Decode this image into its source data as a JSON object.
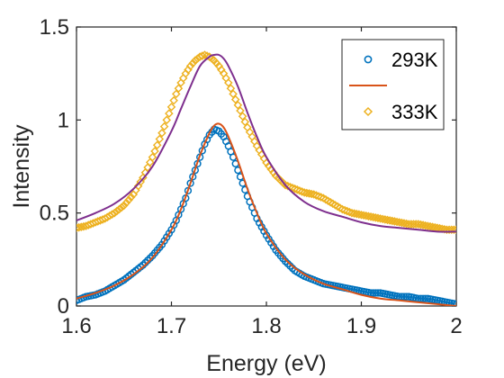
{
  "chart_data": {
    "type": "scatter",
    "xlabel": "Energy (eV)",
    "ylabel": "Intensity",
    "xlim": [
      1.6,
      2.0
    ],
    "ylim": [
      0,
      1.5
    ],
    "xticks": [
      "1.6",
      "1.7",
      "1.8",
      "1.9",
      "2"
    ],
    "yticks": [
      "0",
      "0.5",
      "1",
      "1.5"
    ],
    "grid": false,
    "legend_position": "top-right",
    "legend": [
      "293K",
      "",
      "333K"
    ],
    "colors": {
      "s293_markers": "#0072BD",
      "s293_fit": "#D95319",
      "s333_markers": "#EDB120",
      "s333_fit": "#7E2F8E",
      "axis": "#262626"
    },
    "series": [
      {
        "name": "293K",
        "kind": "markers",
        "marker": "circle",
        "x": [
          1.6,
          1.61,
          1.62,
          1.63,
          1.64,
          1.65,
          1.66,
          1.67,
          1.68,
          1.69,
          1.7,
          1.705,
          1.71,
          1.715,
          1.72,
          1.725,
          1.73,
          1.735,
          1.74,
          1.745,
          1.75,
          1.755,
          1.76,
          1.765,
          1.77,
          1.775,
          1.78,
          1.79,
          1.8,
          1.81,
          1.82,
          1.83,
          1.84,
          1.85,
          1.86,
          1.87,
          1.88,
          1.89,
          1.9,
          1.91,
          1.92,
          1.93,
          1.94,
          1.95,
          1.96,
          1.97,
          1.98,
          1.99,
          2.0
        ],
        "y": [
          0.03,
          0.05,
          0.06,
          0.08,
          0.11,
          0.14,
          0.18,
          0.22,
          0.27,
          0.33,
          0.41,
          0.46,
          0.52,
          0.58,
          0.66,
          0.73,
          0.8,
          0.87,
          0.92,
          0.95,
          0.94,
          0.91,
          0.86,
          0.8,
          0.73,
          0.66,
          0.59,
          0.47,
          0.38,
          0.3,
          0.24,
          0.19,
          0.16,
          0.14,
          0.12,
          0.11,
          0.1,
          0.09,
          0.08,
          0.07,
          0.07,
          0.06,
          0.05,
          0.05,
          0.04,
          0.04,
          0.03,
          0.02,
          0.01
        ]
      },
      {
        "name": "",
        "kind": "line",
        "x": [
          1.6,
          1.62,
          1.64,
          1.66,
          1.68,
          1.7,
          1.71,
          1.72,
          1.73,
          1.74,
          1.745,
          1.75,
          1.755,
          1.76,
          1.77,
          1.78,
          1.79,
          1.8,
          1.82,
          1.84,
          1.86,
          1.88,
          1.9,
          1.92,
          1.94,
          1.96,
          1.98,
          2.0
        ],
        "y": [
          0.04,
          0.07,
          0.11,
          0.17,
          0.26,
          0.41,
          0.52,
          0.66,
          0.81,
          0.93,
          0.97,
          0.98,
          0.96,
          0.91,
          0.78,
          0.63,
          0.5,
          0.39,
          0.25,
          0.17,
          0.12,
          0.09,
          0.06,
          0.04,
          0.03,
          0.02,
          0.01,
          0.0
        ]
      },
      {
        "name": "333K",
        "kind": "markers",
        "marker": "diamond",
        "x": [
          1.6,
          1.61,
          1.62,
          1.63,
          1.64,
          1.65,
          1.66,
          1.67,
          1.68,
          1.69,
          1.7,
          1.705,
          1.71,
          1.715,
          1.72,
          1.725,
          1.73,
          1.735,
          1.74,
          1.745,
          1.75,
          1.755,
          1.76,
          1.765,
          1.77,
          1.775,
          1.78,
          1.79,
          1.8,
          1.81,
          1.82,
          1.83,
          1.84,
          1.85,
          1.86,
          1.87,
          1.88,
          1.89,
          1.9,
          1.91,
          1.92,
          1.93,
          1.94,
          1.95,
          1.96,
          1.97,
          1.98,
          1.99,
          2.0
        ],
        "y": [
          0.42,
          0.43,
          0.45,
          0.47,
          0.5,
          0.54,
          0.6,
          0.69,
          0.8,
          0.93,
          1.07,
          1.14,
          1.2,
          1.25,
          1.29,
          1.32,
          1.34,
          1.35,
          1.34,
          1.32,
          1.29,
          1.25,
          1.2,
          1.14,
          1.08,
          1.02,
          0.96,
          0.86,
          0.77,
          0.7,
          0.65,
          0.63,
          0.61,
          0.6,
          0.58,
          0.55,
          0.52,
          0.5,
          0.49,
          0.48,
          0.47,
          0.46,
          0.45,
          0.44,
          0.44,
          0.43,
          0.42,
          0.41,
          0.41
        ]
      },
      {
        "name": "",
        "kind": "line",
        "x": [
          1.6,
          1.62,
          1.64,
          1.66,
          1.68,
          1.7,
          1.71,
          1.72,
          1.73,
          1.74,
          1.745,
          1.75,
          1.755,
          1.76,
          1.77,
          1.78,
          1.79,
          1.8,
          1.82,
          1.84,
          1.86,
          1.88,
          1.9,
          1.92,
          1.94,
          1.96,
          1.98,
          2.0
        ],
        "y": [
          0.46,
          0.5,
          0.55,
          0.63,
          0.75,
          0.94,
          1.06,
          1.18,
          1.29,
          1.34,
          1.35,
          1.35,
          1.33,
          1.29,
          1.18,
          1.04,
          0.91,
          0.8,
          0.65,
          0.56,
          0.51,
          0.48,
          0.45,
          0.43,
          0.42,
          0.41,
          0.4,
          0.4
        ]
      }
    ]
  }
}
